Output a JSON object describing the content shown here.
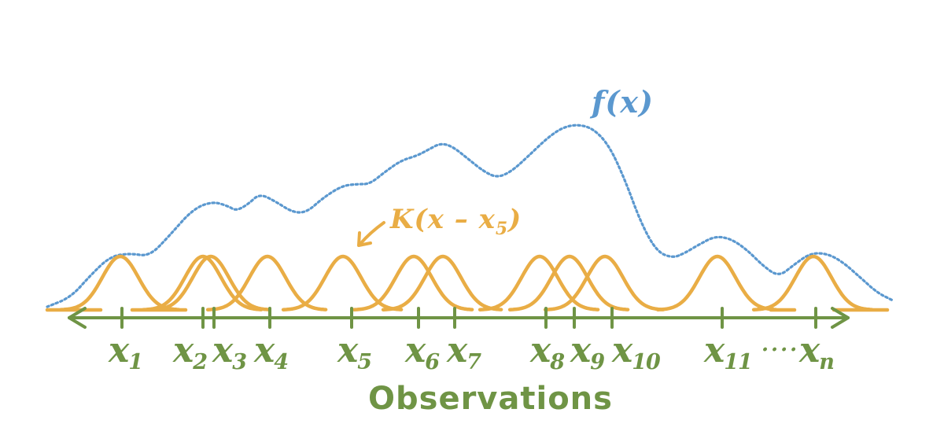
{
  "colors": {
    "kernel": "#e9ad45",
    "density": "#5b98cf",
    "axis": "#6f9445"
  },
  "density_label": "f(x)",
  "kernel_label": {
    "prefix": "K(x – x",
    "sub": "5",
    "suffix": ")"
  },
  "axis_title": "Observations",
  "ellipsis": "....",
  "observations": [
    {
      "base": "x",
      "sub": "1"
    },
    {
      "base": "x",
      "sub": "2"
    },
    {
      "base": "x",
      "sub": "3"
    },
    {
      "base": "x",
      "sub": "4"
    },
    {
      "base": "x",
      "sub": "5"
    },
    {
      "base": "x",
      "sub": "6"
    },
    {
      "base": "x",
      "sub": "7"
    },
    {
      "base": "x",
      "sub": "8"
    },
    {
      "base": "x",
      "sub": "9"
    },
    {
      "base": "x",
      "sub": "10"
    },
    {
      "base": "x",
      "sub": "11"
    },
    {
      "base": "x",
      "sub": "n"
    }
  ]
}
